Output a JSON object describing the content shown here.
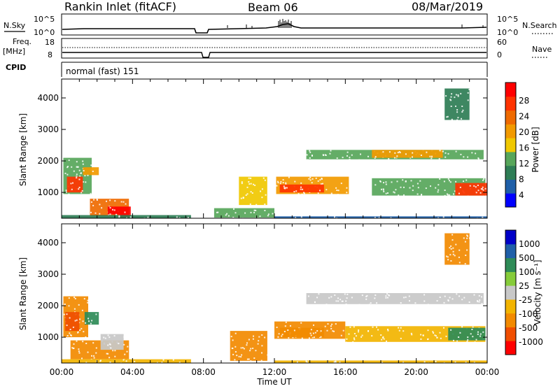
{
  "header": {
    "station": "Rankin Inlet (fitACF)",
    "beam": "Beam 06",
    "date": "08/Mar/2019"
  },
  "summary": {
    "nsky_label": "N.Sky",
    "nsky_ticks": [
      "10^5",
      "10^0"
    ],
    "nsearch_label": "N.Search",
    "nsearch_ticks": [
      "10^5",
      "10^0"
    ],
    "freq_label": "Freq.",
    "freq_unit": "[MHz]",
    "freq_ticks": [
      "18",
      "8"
    ],
    "nave_label": "Nave",
    "nave_ticks": [
      "60",
      "0"
    ],
    "cpid_label": "CPID",
    "cpid_value": "normal (fast) 151"
  },
  "colors": {
    "power": [
      "#0000ff",
      "#1f5fa8",
      "#2e7d55",
      "#57a65a",
      "#f0c800",
      "#f29a00",
      "#ef6a00",
      "#ff3300",
      "#ff0000"
    ],
    "velocity": [
      "#ff0000",
      "#f04e00",
      "#f28a00",
      "#f2b400",
      "#c8c8c8",
      "#86cc3a",
      "#2e8b57",
      "#1f5fa8",
      "#0000c8"
    ]
  },
  "chart_data": [
    {
      "type": "heatmap",
      "name": "Power",
      "ylabel": "Slant Range [km]",
      "yticks": [
        "4000",
        "3000",
        "2000",
        "1000"
      ],
      "ylim": [
        180,
        4600
      ],
      "xlim": [
        "00:00",
        "24:00"
      ],
      "colorbar_label": "Power [dB]",
      "colorbar_ticks": [
        "28",
        "24",
        "20",
        "16",
        "12",
        "8",
        "4"
      ],
      "regions": [
        {
          "t0": 0.1,
          "t1": 1.7,
          "r0": 950,
          "r1": 2100,
          "v": 14
        },
        {
          "t0": 0.3,
          "t1": 1.2,
          "r0": 1000,
          "r1": 1500,
          "v": 27
        },
        {
          "t0": 1.2,
          "t1": 2.1,
          "r0": 1550,
          "r1": 1800,
          "v": 18
        },
        {
          "t0": 1.6,
          "t1": 3.8,
          "r0": 250,
          "r1": 800,
          "v": 22
        },
        {
          "t0": 2.6,
          "t1": 3.9,
          "r0": 300,
          "r1": 550,
          "v": 30
        },
        {
          "t0": 3.2,
          "t1": 3.9,
          "r0": 200,
          "r1": 300,
          "v": 30
        },
        {
          "t0": 0.0,
          "t1": 7.3,
          "r0": 180,
          "r1": 280,
          "v": 8
        },
        {
          "t0": 8.6,
          "t1": 12.0,
          "r0": 200,
          "r1": 500,
          "v": 14
        },
        {
          "t0": 10.0,
          "t1": 11.6,
          "r0": 600,
          "r1": 1500,
          "v": 16
        },
        {
          "t0": 12.1,
          "t1": 16.2,
          "r0": 950,
          "r1": 1500,
          "v": 18
        },
        {
          "t0": 12.3,
          "t1": 14.8,
          "r0": 1000,
          "r1": 1250,
          "v": 28
        },
        {
          "t0": 13.8,
          "t1": 23.8,
          "r0": 2050,
          "r1": 2350,
          "v": 14
        },
        {
          "t0": 17.5,
          "t1": 21.5,
          "r0": 2100,
          "r1": 2350,
          "v": 21
        },
        {
          "t0": 17.5,
          "t1": 23.9,
          "r0": 900,
          "r1": 1450,
          "v": 11
        },
        {
          "t0": 22.2,
          "t1": 24.0,
          "r0": 900,
          "r1": 1300,
          "v": 28
        },
        {
          "t0": 12.0,
          "t1": 24.0,
          "r0": 180,
          "r1": 240,
          "v": 5
        },
        {
          "t0": 21.6,
          "t1": 23.0,
          "r0": 3300,
          "r1": 4300,
          "v": 10
        }
      ]
    },
    {
      "type": "heatmap",
      "name": "Velocity",
      "ylabel": "Slant Range [km]",
      "yticks": [
        "4000",
        "3000",
        "2000",
        "1000"
      ],
      "ylim": [
        180,
        4600
      ],
      "xlim": [
        "00:00",
        "24:00"
      ],
      "xlabel": "Time UT",
      "xticks": [
        "00:00",
        "04:00",
        "08:00",
        "12:00",
        "16:00",
        "20:00",
        "00:00"
      ],
      "colorbar_label": "Velocity [m s⁻¹]",
      "colorbar_ticks": [
        "1000",
        "500",
        "100",
        "25",
        "-25",
        "-100",
        "-500",
        "-1000"
      ],
      "regions": [
        {
          "t0": 0.1,
          "t1": 1.5,
          "r0": 1000,
          "r1": 2300,
          "v": -150
        },
        {
          "t0": 0.2,
          "t1": 1.0,
          "r0": 1200,
          "r1": 1800,
          "v": -600
        },
        {
          "t0": 1.3,
          "t1": 2.1,
          "r0": 1400,
          "r1": 1800,
          "v": 300
        },
        {
          "t0": 0.5,
          "t1": 3.8,
          "r0": 300,
          "r1": 900,
          "v": -150
        },
        {
          "t0": 2.2,
          "t1": 3.5,
          "r0": 600,
          "r1": 1100,
          "v": 0
        },
        {
          "t0": 0.0,
          "t1": 7.3,
          "r0": 180,
          "r1": 300,
          "v": -60
        },
        {
          "t0": 9.5,
          "t1": 11.6,
          "r0": 250,
          "r1": 1200,
          "v": -120
        },
        {
          "t0": 12.0,
          "t1": 16.0,
          "r0": 950,
          "r1": 1500,
          "v": -150
        },
        {
          "t0": 12.3,
          "t1": 14.8,
          "r0": 1000,
          "r1": 1300,
          "v": -250
        },
        {
          "t0": 13.8,
          "t1": 23.8,
          "r0": 2050,
          "r1": 2400,
          "v": 0
        },
        {
          "t0": 16.0,
          "t1": 23.9,
          "r0": 850,
          "r1": 1350,
          "v": -80
        },
        {
          "t0": 21.8,
          "t1": 23.9,
          "r0": 900,
          "r1": 1300,
          "v": 200
        },
        {
          "t0": 12.0,
          "t1": 24.0,
          "r0": 180,
          "r1": 260,
          "v": -60
        },
        {
          "t0": 21.6,
          "t1": 23.0,
          "r0": 3300,
          "r1": 4300,
          "v": -200
        }
      ]
    }
  ]
}
